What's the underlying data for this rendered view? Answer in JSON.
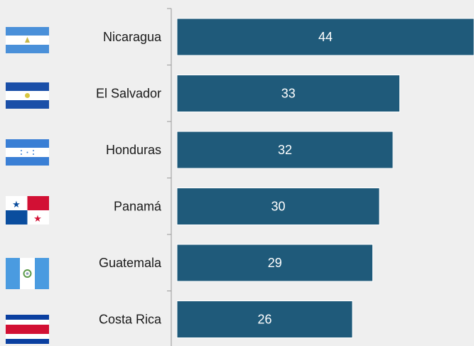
{
  "chart_data": {
    "type": "bar",
    "orientation": "horizontal",
    "categories": [
      "Nicaragua",
      "El Salvador",
      "Honduras",
      "Panamá",
      "Guatemala",
      "Costa Rica"
    ],
    "values": [
      44,
      33,
      32,
      30,
      29,
      26
    ],
    "data_labels": [
      "44",
      "33",
      "32",
      "30",
      "29",
      "26"
    ],
    "flag_icons": [
      "nicaragua-flag-icon",
      "el-salvador-flag-icon",
      "honduras-flag-icon",
      "panama-flag-icon",
      "guatemala-flag-icon",
      "costa-rica-flag-icon"
    ],
    "xlim": [
      0,
      44
    ],
    "grid": false,
    "colors": {
      "bar": "#1f5a7a",
      "bar_edge": "#ffffff",
      "background": "#efefef",
      "axis": "#9a9a9a"
    }
  }
}
